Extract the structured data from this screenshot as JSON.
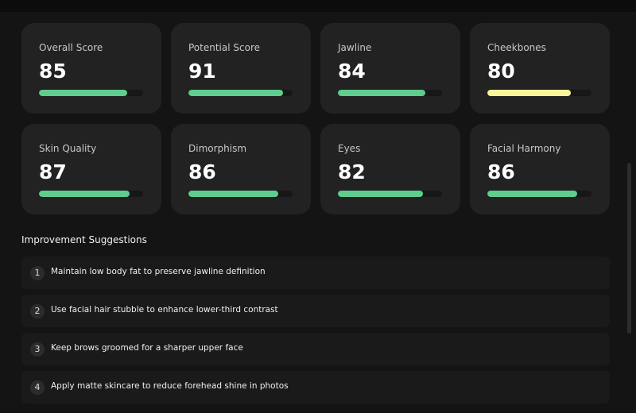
{
  "cards": [
    {
      "label": "Overall Score",
      "score": 85,
      "color": "#5fcd8e"
    },
    {
      "label": "Potential Score",
      "score": 91,
      "color": "#5fcd8e"
    },
    {
      "label": "Jawline",
      "score": 84,
      "color": "#5fcd8e"
    },
    {
      "label": "Cheekbones",
      "score": 80,
      "color": "#fbf39a"
    },
    {
      "label": "Skin Quality",
      "score": 87,
      "color": "#5fcd8e"
    },
    {
      "label": "Dimorphism",
      "score": 86,
      "color": "#5fcd8e"
    },
    {
      "label": "Eyes",
      "score": 82,
      "color": "#5fcd8e"
    },
    {
      "label": "Facial Harmony",
      "score": 86,
      "color": "#5fcd8e"
    }
  ],
  "suggestions": {
    "title": "Improvement Suggestions",
    "items": [
      {
        "number": 1,
        "text": "Maintain low body fat to preserve jawline definition"
      },
      {
        "number": 2,
        "text": "Use facial hair stubble to enhance lower-third contrast"
      },
      {
        "number": 3,
        "text": "Keep brows groomed for a sharper upper face"
      },
      {
        "number": 4,
        "text": "Apply matte skincare to reduce forehead shine in photos"
      }
    ]
  }
}
